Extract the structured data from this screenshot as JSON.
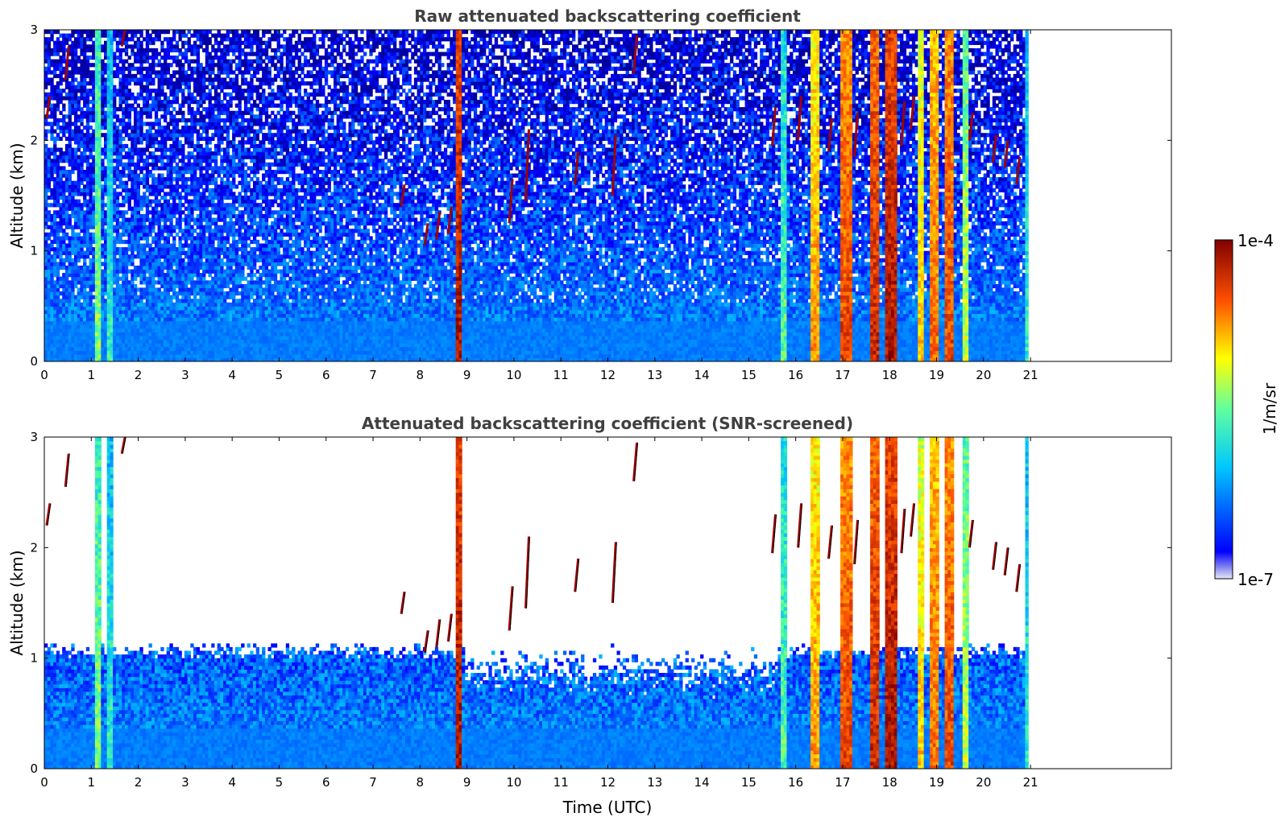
{
  "chart_data": [
    {
      "type": "heatmap",
      "title": "Raw attenuated backscattering coefficient",
      "ylabel": "Altitude (km)",
      "xlabel": "",
      "xlim": [
        0,
        24
      ],
      "ylim": [
        0,
        3
      ],
      "xticks": [
        "0",
        "1",
        "2",
        "3",
        "4",
        "5",
        "6",
        "7",
        "8",
        "9",
        "10",
        "11",
        "12",
        "13",
        "14",
        "15",
        "16",
        "17",
        "18",
        "19",
        "20",
        "21"
      ],
      "yticks": [
        "0",
        "1",
        "2",
        "3"
      ],
      "data_extent_hours": [
        0,
        20.95
      ],
      "screened": false
    },
    {
      "type": "heatmap",
      "title": "Attenuated backscattering coefficient (SNR-screened)",
      "ylabel": "Altitude (km)",
      "xlabel": "Time (UTC)",
      "xlim": [
        0,
        24
      ],
      "ylim": [
        0,
        3
      ],
      "xticks": [
        "0",
        "1",
        "2",
        "3",
        "4",
        "5",
        "6",
        "7",
        "8",
        "9",
        "10",
        "11",
        "12",
        "13",
        "14",
        "15",
        "16",
        "17",
        "18",
        "19",
        "20",
        "21"
      ],
      "yticks": [
        "0",
        "1",
        "2",
        "3"
      ],
      "data_extent_hours": [
        0,
        20.95
      ],
      "screened": true,
      "screen_top_km": 1.05
    }
  ],
  "colorbar": {
    "label": "1/m/sr",
    "max_label": "1e-4",
    "min_label": "1e-7",
    "scale": "log",
    "range": [
      1e-07,
      0.0001
    ],
    "colormap": "jet"
  },
  "features": {
    "rain_columns_hours": [
      [
        1.02,
        1.18,
        0.55
      ],
      [
        1.28,
        1.4,
        0.45
      ],
      [
        8.72,
        8.85,
        0.95
      ],
      [
        15.68,
        15.78,
        0.5
      ],
      [
        16.3,
        16.45,
        0.75
      ],
      [
        16.95,
        17.15,
        0.85
      ],
      [
        17.58,
        17.75,
        0.9
      ],
      [
        17.85,
        18.1,
        0.95
      ],
      [
        18.6,
        18.7,
        0.7
      ],
      [
        18.85,
        19.0,
        0.8
      ],
      [
        19.15,
        19.3,
        0.85
      ],
      [
        19.55,
        19.65,
        0.6
      ],
      [
        20.85,
        20.95,
        0.45
      ]
    ],
    "cloud_streaks": [
      [
        0.45,
        2.55,
        2.85
      ],
      [
        0.05,
        2.2,
        2.4
      ],
      [
        1.65,
        2.85,
        3.0
      ],
      [
        7.6,
        1.4,
        1.6
      ],
      [
        8.1,
        1.05,
        1.25
      ],
      [
        8.35,
        1.1,
        1.35
      ],
      [
        8.6,
        1.15,
        1.4
      ],
      [
        9.9,
        1.25,
        1.65
      ],
      [
        10.25,
        1.45,
        2.1
      ],
      [
        11.3,
        1.6,
        1.9
      ],
      [
        12.1,
        1.5,
        2.05
      ],
      [
        12.55,
        2.6,
        2.95
      ],
      [
        15.5,
        1.95,
        2.3
      ],
      [
        16.05,
        2.0,
        2.4
      ],
      [
        16.7,
        1.9,
        2.2
      ],
      [
        17.25,
        1.85,
        2.25
      ],
      [
        18.25,
        1.95,
        2.35
      ],
      [
        18.45,
        2.1,
        2.4
      ],
      [
        19.7,
        2.0,
        2.25
      ],
      [
        20.2,
        1.8,
        2.05
      ],
      [
        20.45,
        1.75,
        2.0
      ],
      [
        20.7,
        1.6,
        1.85
      ]
    ]
  }
}
